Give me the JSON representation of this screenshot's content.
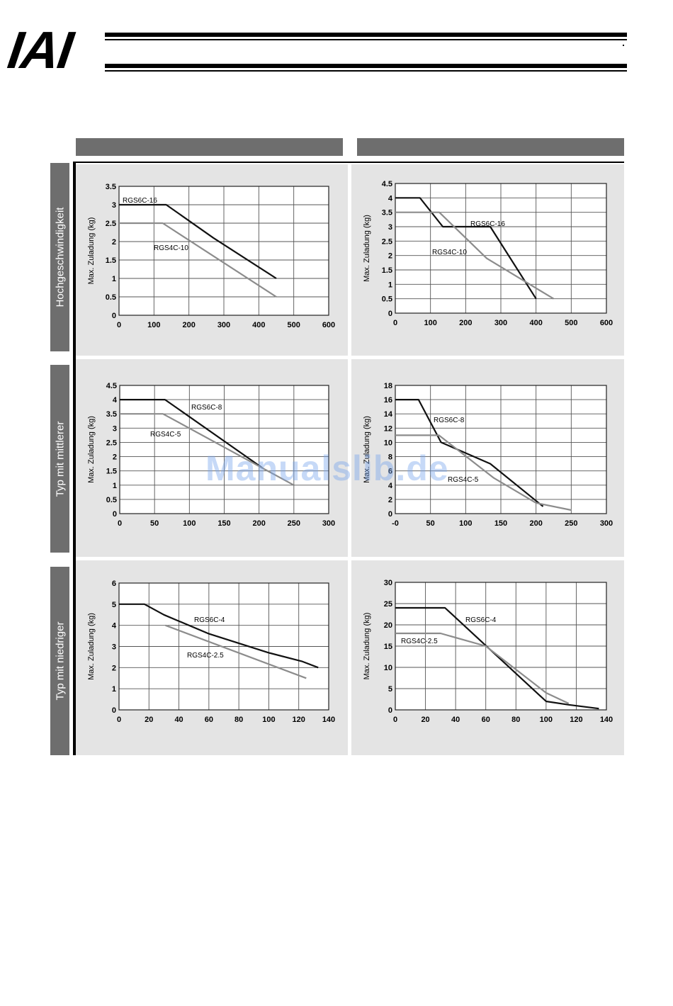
{
  "header": {
    "logo_text": "IAI",
    "column_headers": [
      "",
      ""
    ]
  },
  "rows": [
    {
      "label": "Hochgeschwindigkeit"
    },
    {
      "label": "Typ mit mittlerer"
    },
    {
      "label": "Typ mit niedriger"
    }
  ],
  "watermark": "Manualslib.de",
  "colors": {
    "rgs6c": "#111111",
    "rgs4c": "#8c8c8c",
    "panel_bg": "#e4e4e4",
    "header_bar": "#6e6e6e"
  },
  "chart_data": [
    {
      "type": "line",
      "ylabel": "Max. Zuladung (kg)",
      "xlabel": "",
      "xlim": [
        0,
        600
      ],
      "ylim": [
        0,
        3.5
      ],
      "xticks": [
        0,
        100,
        200,
        300,
        400,
        500,
        600
      ],
      "yticks": [
        0,
        0.5,
        1,
        1.5,
        2,
        2.5,
        3,
        3.5
      ],
      "ytick_labels": [
        "0",
        "0.5",
        "1",
        "1.5",
        "2",
        "2.5",
        "3",
        "3.5"
      ],
      "grid": true,
      "series": [
        {
          "name": "RGS6C-16",
          "x": [
            0,
            135,
            270,
            450
          ],
          "y": [
            3,
            3,
            2.1,
            1
          ]
        },
        {
          "name": "RGS4C-10",
          "x": [
            0,
            125,
            450
          ],
          "y": [
            2.5,
            2.5,
            0.5
          ]
        }
      ]
    },
    {
      "type": "line",
      "ylabel": "Max. Zuladung (kg)",
      "xlabel": "",
      "xlim": [
        0,
        600
      ],
      "ylim": [
        0,
        4.5
      ],
      "xticks": [
        0,
        100,
        200,
        300,
        400,
        500,
        600
      ],
      "yticks": [
        0,
        0.5,
        1,
        1.5,
        2,
        2.5,
        3,
        3.5,
        4,
        4.5
      ],
      "ytick_labels": [
        "0",
        "0.5",
        "1",
        "1.5",
        "2",
        "2.5",
        "3",
        "3.5",
        "4",
        "4.5"
      ],
      "grid": true,
      "series": [
        {
          "name": "RGS6C-16",
          "x": [
            0,
            70,
            135,
            270,
            400
          ],
          "y": [
            4,
            4,
            3,
            3,
            0.5
          ]
        },
        {
          "name": "RGS4C-10",
          "x": [
            0,
            125,
            260,
            450
          ],
          "y": [
            3.5,
            3.5,
            1.9,
            0.5
          ]
        }
      ]
    },
    {
      "type": "line",
      "ylabel": "Max. Zuladung (kg)",
      "xlabel": "",
      "xlim": [
        0,
        300
      ],
      "ylim": [
        0,
        4.5
      ],
      "xticks": [
        0,
        50,
        100,
        150,
        200,
        250,
        300
      ],
      "yticks": [
        0,
        0.5,
        1,
        1.5,
        2,
        2.5,
        3,
        3.5,
        4,
        4.5
      ],
      "ytick_labels": [
        "0",
        "0.5",
        "1",
        "1.5",
        "2",
        "2.5",
        "3",
        "3.5",
        "4",
        "4.5"
      ],
      "grid": true,
      "series": [
        {
          "name": "RGS6C-8",
          "x": [
            0,
            65,
            205
          ],
          "y": [
            4,
            4,
            1.6
          ]
        },
        {
          "name": "RGS4C-5",
          "x": [
            0,
            62,
            250
          ],
          "y": [
            3.5,
            3.5,
            1
          ]
        }
      ]
    },
    {
      "type": "line",
      "ylabel": "Max. Zuladung (kg)",
      "xlabel": "",
      "xlim": [
        0,
        300
      ],
      "ylim": [
        0,
        18
      ],
      "xticks": [
        0,
        50,
        100,
        150,
        200,
        250,
        300
      ],
      "xtick_labels": [
        "-0",
        "50",
        "100",
        "150",
        "200",
        "250",
        "300"
      ],
      "yticks": [
        0,
        2,
        4,
        6,
        8,
        10,
        12,
        14,
        16,
        18
      ],
      "ytick_labels": [
        "0",
        "2",
        "4",
        "6",
        "8",
        "10",
        "12",
        "14",
        "16",
        "18"
      ],
      "grid": true,
      "series": [
        {
          "name": "RGS6C-8",
          "x": [
            0,
            33,
            65,
            135,
            210
          ],
          "y": [
            16,
            16,
            10,
            7,
            1
          ]
        },
        {
          "name": "RGS4C-5",
          "x": [
            0,
            62,
            140,
            200,
            250
          ],
          "y": [
            11,
            11,
            5,
            1.5,
            0.5
          ]
        }
      ]
    },
    {
      "type": "line",
      "ylabel": "Max. Zuladung (kg)",
      "xlabel": "",
      "xlim": [
        0,
        140
      ],
      "ylim": [
        0,
        6
      ],
      "xticks": [
        0,
        20,
        40,
        60,
        80,
        100,
        120,
        140
      ],
      "yticks": [
        0,
        1,
        2,
        3,
        4,
        5,
        6
      ],
      "ytick_labels": [
        "0",
        "1",
        "2",
        "3",
        "4",
        "5",
        "6"
      ],
      "grid": true,
      "series": [
        {
          "name": "RGS6C-4",
          "x": [
            0,
            17,
            30,
            60,
            100,
            122,
            133
          ],
          "y": [
            5,
            5,
            4.5,
            3.6,
            2.7,
            2.3,
            2
          ]
        },
        {
          "name": "RGS4C-2.5",
          "x": [
            31,
            125
          ],
          "y": [
            4,
            1.5
          ]
        }
      ]
    },
    {
      "type": "line",
      "ylabel": "Max. Zuladung (kg)",
      "xlabel": "",
      "xlim": [
        0,
        140
      ],
      "ylim": [
        0,
        30
      ],
      "xticks": [
        0,
        20,
        40,
        60,
        80,
        100,
        120,
        140
      ],
      "yticks": [
        0,
        5,
        10,
        15,
        20,
        25,
        30
      ],
      "ytick_labels": [
        "0",
        "5",
        "10",
        "15",
        "20",
        "25",
        "30"
      ],
      "grid": true,
      "series": [
        {
          "name": "RGS6C-4",
          "x": [
            0,
            33,
            100,
            115,
            135
          ],
          "y": [
            24,
            24,
            2,
            1.2,
            0.3
          ]
        },
        {
          "name": "RGS4C-2.5",
          "x": [
            0,
            30,
            60,
            100,
            115
          ],
          "y": [
            18,
            18,
            15,
            4,
            1.5
          ]
        }
      ]
    }
  ]
}
